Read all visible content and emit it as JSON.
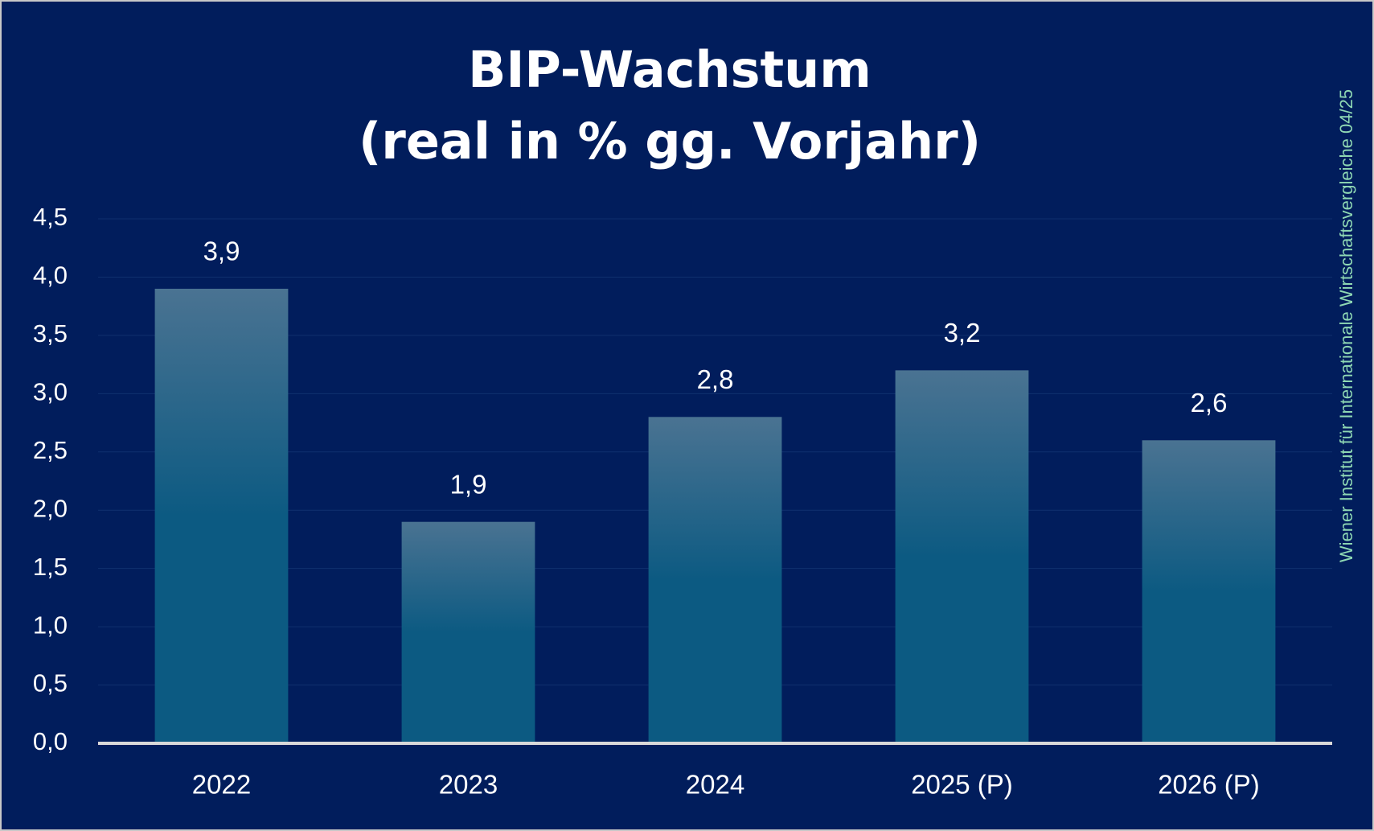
{
  "chart_data": {
    "type": "bar",
    "title": [
      "BIP-Wachstum",
      "(real in % gg. Vorjahr)"
    ],
    "source": "Wiener Institut für Internationale Wirtschaftsvergleiche 04/25",
    "categories": [
      "2022",
      "2023",
      "2024",
      "2025 (P)",
      "2026 (P)"
    ],
    "values": [
      3.9,
      1.9,
      2.8,
      3.2,
      2.6
    ],
    "value_labels": [
      "3,9",
      "1,9",
      "2,8",
      "3,2",
      "2,6"
    ],
    "color": [
      "#4a7392",
      "#0c5a82"
    ],
    "ylim": [
      0,
      4.5
    ],
    "yticks": [
      {
        "value": 0,
        "label": "0,0"
      },
      {
        "value": 0.5,
        "label": "0,5"
      },
      {
        "value": 1,
        "label": "1,0"
      },
      {
        "value": 1.5,
        "label": "1,5"
      },
      {
        "value": 2,
        "label": "2,0"
      },
      {
        "value": 2.5,
        "label": "2,5"
      },
      {
        "value": 3,
        "label": "3,0"
      },
      {
        "value": 3.5,
        "label": "3,5"
      },
      {
        "value": 4,
        "label": "4,0"
      },
      {
        "value": 4.5,
        "label": "4,5"
      }
    ],
    "grid": true
  }
}
